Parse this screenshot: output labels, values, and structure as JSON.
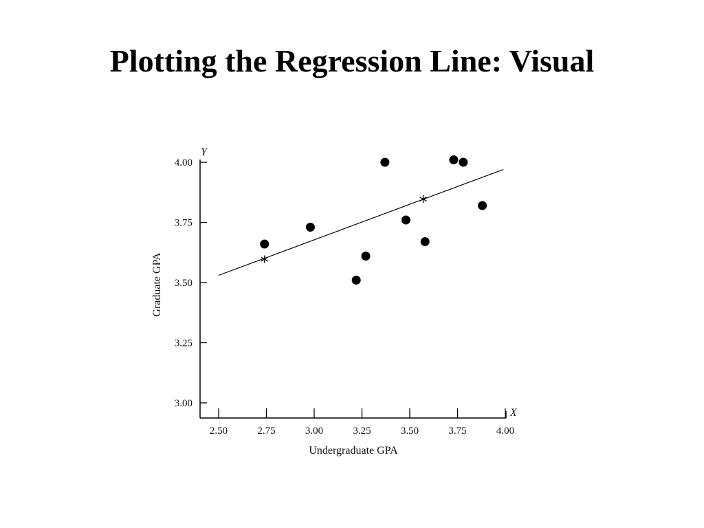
{
  "slide": {
    "title": "Plotting the Regression Line: Visual"
  },
  "chart_data": {
    "type": "scatter",
    "xlabel": "Undergraduate GPA",
    "ylabel": "Graduate GPA",
    "x_axis_letter": "X",
    "y_axis_letter": "Y",
    "xlim": [
      2.4,
      4.0
    ],
    "ylim": [
      3.0,
      4.0
    ],
    "x_ticks": [
      {
        "value": 2.5,
        "label": "2.50"
      },
      {
        "value": 2.75,
        "label": "2.75"
      },
      {
        "value": 3.0,
        "label": "3.00"
      },
      {
        "value": 3.25,
        "label": "3.25"
      },
      {
        "value": 3.5,
        "label": "3.50"
      },
      {
        "value": 3.75,
        "label": "3.75"
      },
      {
        "value": 4.0,
        "label": "4.00"
      }
    ],
    "y_ticks": [
      {
        "value": 3.0,
        "label": "3.00"
      },
      {
        "value": 3.25,
        "label": "3.25"
      },
      {
        "value": 3.5,
        "label": "3.50"
      },
      {
        "value": 3.75,
        "label": "3.75"
      },
      {
        "value": 4.0,
        "label": "4.00"
      }
    ],
    "points": [
      {
        "x": 2.74,
        "y": 3.66
      },
      {
        "x": 2.98,
        "y": 3.73
      },
      {
        "x": 3.22,
        "y": 3.51
      },
      {
        "x": 3.27,
        "y": 3.61
      },
      {
        "x": 3.37,
        "y": 4.0
      },
      {
        "x": 3.48,
        "y": 3.76
      },
      {
        "x": 3.58,
        "y": 3.67
      },
      {
        "x": 3.73,
        "y": 4.01
      },
      {
        "x": 3.78,
        "y": 4.0
      },
      {
        "x": 3.88,
        "y": 3.82
      }
    ],
    "regression_line": {
      "x1": 2.5,
      "y1": 3.53,
      "x2": 3.99,
      "y2": 3.97
    },
    "star_markers": [
      {
        "x": 2.74,
        "y": 3.59,
        "symbol": "*"
      },
      {
        "x": 3.57,
        "y": 3.84,
        "symbol": "*"
      }
    ],
    "grid": false
  }
}
